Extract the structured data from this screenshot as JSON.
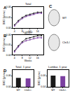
{
  "chart_data": [
    {
      "type": "line",
      "title": "Total",
      "annotations": [
        "A"
      ],
      "x_label": "Weeks",
      "y_label": "BMD (g/cm²)",
      "x": [
        4,
        6,
        8,
        10,
        12,
        14,
        16,
        18
      ],
      "series": [
        {
          "name": "WT",
          "color": "#1a1a1a",
          "values": [
            0.043,
            0.047,
            0.05,
            0.052,
            0.053,
            0.054,
            0.055,
            0.055
          ]
        },
        {
          "name": "Cln3-/-",
          "color": "#7b3fa0",
          "values": [
            0.042,
            0.046,
            0.049,
            0.051,
            0.052,
            0.053,
            0.054,
            0.054
          ]
        }
      ],
      "xlim": [
        3,
        19
      ],
      "xticks": [
        4,
        8,
        12,
        16
      ],
      "ylim": [
        0.04,
        0.06
      ],
      "yticks": [
        0.04,
        0.05,
        0.06
      ]
    },
    {
      "type": "line",
      "title": "Lumbar",
      "annotations": [
        "B"
      ],
      "x_label": "Weeks",
      "y_label": "BMD (g/cm²)",
      "x": [
        4,
        6,
        8,
        10,
        12,
        14,
        16,
        18
      ],
      "series": [
        {
          "name": "WT",
          "color": "#1a1a1a",
          "values": [
            0.044,
            0.049,
            0.053,
            0.056,
            0.057,
            0.058,
            0.059,
            0.059
          ]
        },
        {
          "name": "Cln3-/-",
          "color": "#7b3fa0",
          "values": [
            0.043,
            0.048,
            0.052,
            0.054,
            0.055,
            0.056,
            0.057,
            0.057
          ]
        }
      ],
      "xlim": [
        3,
        19
      ],
      "xticks": [
        4,
        8,
        12,
        16
      ],
      "ylim": [
        0.04,
        0.06
      ],
      "yticks": [
        0.04,
        0.05,
        0.06
      ]
    },
    {
      "type": "image",
      "annotations": [
        "C"
      ],
      "labels": [
        "WT",
        "Cln3-/-"
      ]
    },
    {
      "type": "bar",
      "title": "Total, 1 year",
      "annotations": [
        "D"
      ],
      "y_label": "BMD (g/cm²)",
      "categories": [
        "WT",
        "Cln3-/-"
      ],
      "values": [
        0.056,
        0.055
      ],
      "colors": [
        "#1a1a1a",
        "#7b3fa0"
      ],
      "ylim": [
        0.04,
        0.07
      ],
      "yticks": [
        0.04,
        0.06
      ]
    },
    {
      "type": "bar",
      "title": "Lumbar, 1 year",
      "y_label": "BMD (g/cm²)",
      "categories": [
        "WT",
        "Cln3-/-"
      ],
      "values": [
        0.06,
        0.059
      ],
      "colors": [
        "#1a1a1a",
        "#7b3fa0"
      ],
      "ylim": [
        0.04,
        0.07
      ],
      "yticks": [
        0.04,
        0.06
      ]
    }
  ]
}
